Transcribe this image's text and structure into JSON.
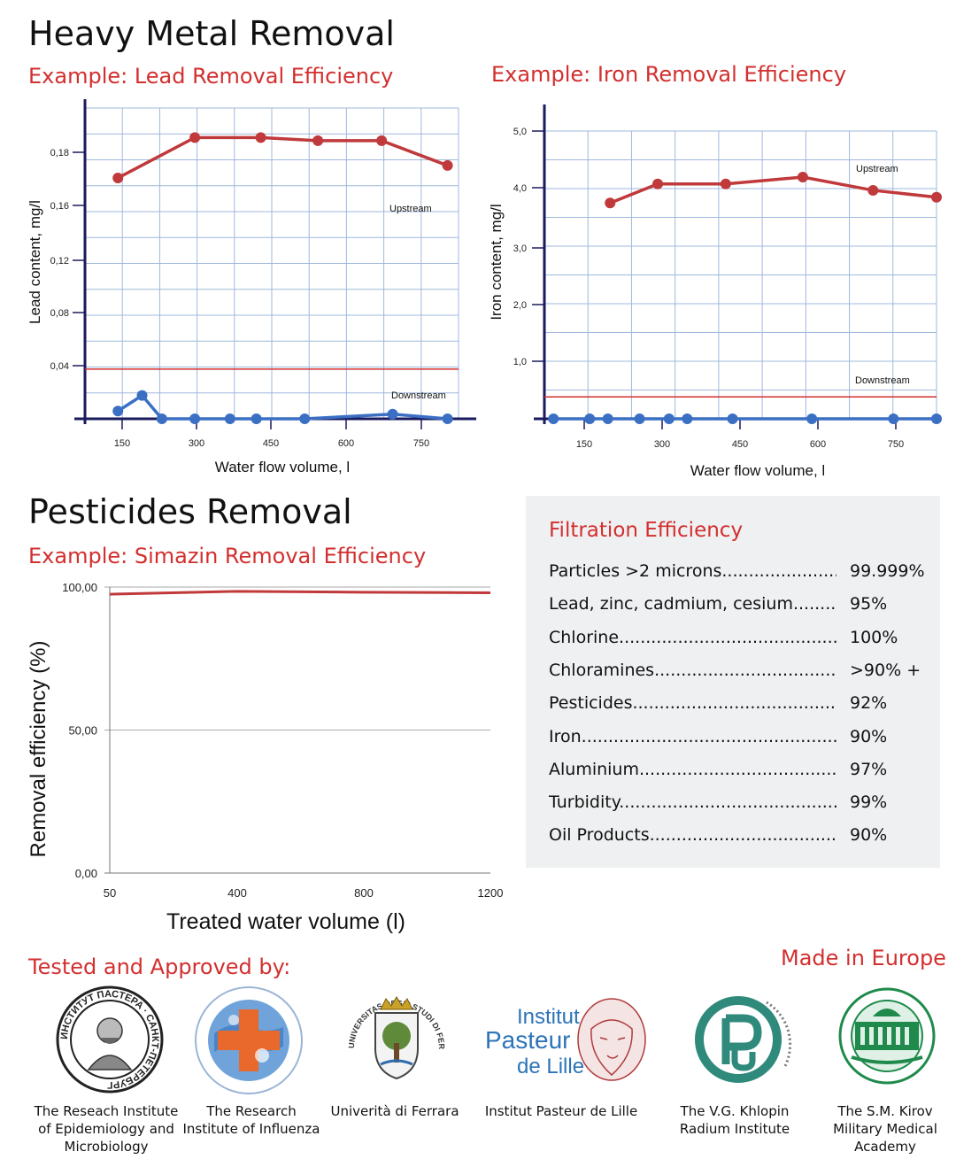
{
  "heavy": {
    "title": "Heavy Metal Removal",
    "lead_subtitle": "Example: Lead Removal Efficiency",
    "iron_subtitle": "Example: Iron Removal Efficiency"
  },
  "pesticides": {
    "title": "Pesticides Removal",
    "subtitle": "Example: Simazin Removal Efficiency"
  },
  "chart_data": [
    {
      "type": "line",
      "title": "",
      "xlabel": "Water flow volume, l",
      "ylabel": "Lead content, mg/l",
      "x_ticks": [
        "150",
        "300",
        "450",
        "600",
        "750"
      ],
      "y_ticks": [
        "0,04",
        "0,08",
        "0,12",
        "0,16",
        "0,18"
      ],
      "series": [
        {
          "name": "Upstream",
          "color": "#c0393b",
          "x": [
            75,
            250,
            400,
            530,
            675,
            825
          ],
          "y": [
            0.155,
            0.181,
            0.181,
            0.179,
            0.179,
            0.163
          ]
        },
        {
          "name": "Downstream",
          "color": "#3a6fc4",
          "x": [
            75,
            130,
            175,
            250,
            330,
            390,
            500,
            700,
            825
          ],
          "y": [
            0.005,
            0.015,
            0.0,
            0.0,
            0.0,
            0.0,
            0.0,
            0.003,
            0.0
          ]
        }
      ],
      "reference_line": 0.032,
      "grid": true
    },
    {
      "type": "line",
      "title": "",
      "xlabel": "Water flow volume, l",
      "ylabel": "Iron content, mg/l",
      "x_ticks": [
        "150",
        "300",
        "450",
        "600",
        "750"
      ],
      "y_ticks": [
        "1,0",
        "2,0",
        "3,0",
        "4,0",
        "5,0"
      ],
      "series": [
        {
          "name": "Upstream",
          "color": "#c0393b",
          "x": [
            145,
            250,
            400,
            570,
            725,
            865
          ],
          "y": [
            3.75,
            4.08,
            4.08,
            4.2,
            3.97,
            3.85
          ]
        },
        {
          "name": "Downstream",
          "color": "#3a6fc4",
          "x": [
            20,
            100,
            140,
            210,
            275,
            315,
            415,
            590,
            770,
            865
          ],
          "y": [
            0,
            0,
            0,
            0,
            0,
            0,
            0,
            0,
            0,
            0
          ]
        }
      ],
      "reference_line": 0.38,
      "grid": true
    },
    {
      "type": "line",
      "title": "",
      "xlabel": "Treated water volume (l)",
      "ylabel": "Removal efficiency (%)",
      "x_ticks": [
        "50",
        "400",
        "800",
        "1200"
      ],
      "y_ticks": [
        "0,00",
        "50,00",
        "100,00"
      ],
      "ylim": [
        0,
        100
      ],
      "series": [
        {
          "color": "#c0393b",
          "x": [
            50,
            400,
            800,
            1200
          ],
          "y": [
            97.5,
            98.5,
            98.2,
            98.0
          ]
        }
      ],
      "grid": true
    }
  ],
  "filtration": {
    "title": "Filtration Efficiency",
    "rows": [
      {
        "label": "Particles >2 microns..............................",
        "value": "99.999%"
      },
      {
        "label": "Lead, zinc, cadmium, cesium.............",
        "value": "95%"
      },
      {
        "label": "Chlorine..................................................",
        "value": "100%"
      },
      {
        "label": "Chloramines.............................................",
        "value": ">90% +"
      },
      {
        "label": "Pesticides..................................................",
        "value": "92%"
      },
      {
        "label": "Iron.............................................................",
        "value": "90%"
      },
      {
        "label": "Aluminium...................................................",
        "value": "97%"
      },
      {
        "label": "Turbidity......................................................",
        "value": "99%"
      },
      {
        "label": "Oil Products...............................................",
        "value": "90%"
      }
    ]
  },
  "footer": {
    "tested_label": "Tested and Approved by:",
    "made_in": "Made in Europe",
    "institutes": [
      {
        "line1": "The Reseach Institute",
        "line2": "of Epidemiology and",
        "line3": "Microbiology"
      },
      {
        "line1": "The Research",
        "line2": "Institute of Influenza",
        "line3": ""
      },
      {
        "line1": "Univerità di Ferrara",
        "line2": "",
        "line3": ""
      },
      {
        "line1": "Institut Pasteur de Lille",
        "line2": "",
        "line3": ""
      },
      {
        "line1": "The V.G. Khlopin",
        "line2": "Radium Institute",
        "line3": ""
      },
      {
        "line1": "The S.M. Kirov",
        "line2": "Military Medical",
        "line3": "Academy"
      }
    ],
    "logo_texts": {
      "pasteur_spb": "ИНСТИТУТ ПАСТЕРА · САНКТ-ПЕТЕРБУРГ",
      "lille_1": "Institut",
      "lille_2": "Pasteur",
      "lille_3": "de Lille",
      "ferrara": "UNIVERSITAS DEGLI STUDI DI FERRARA"
    }
  }
}
